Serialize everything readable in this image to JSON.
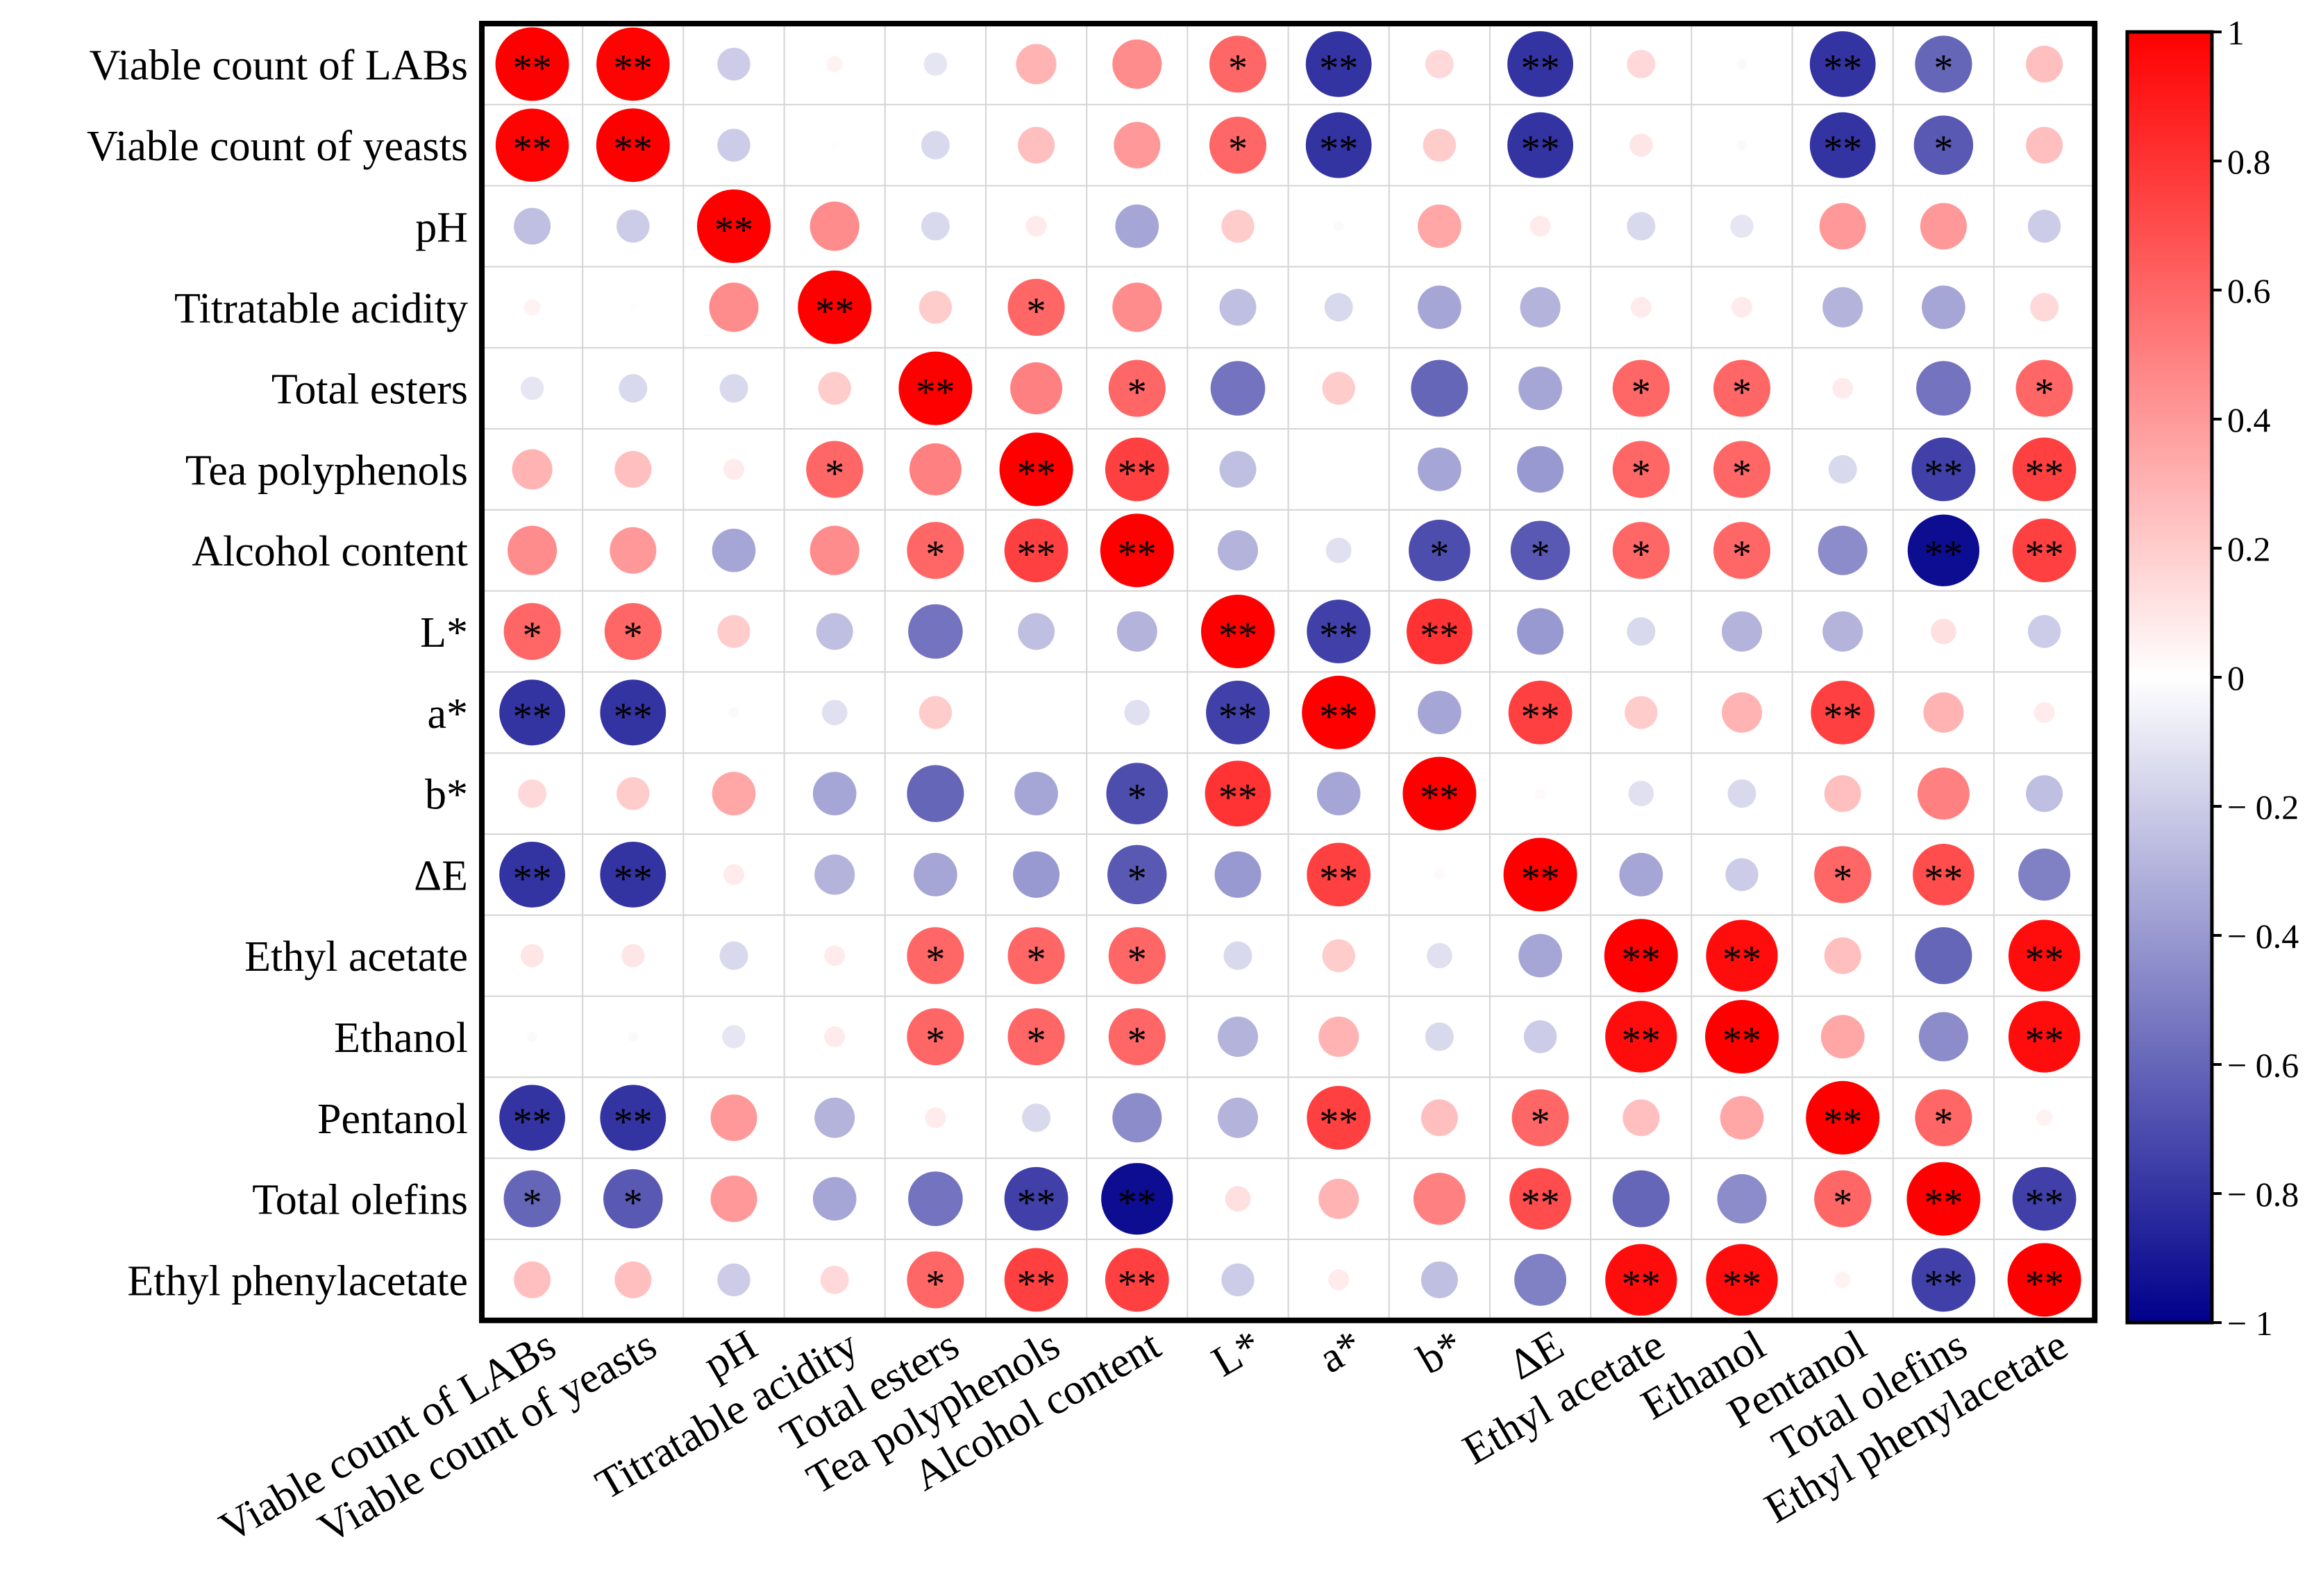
{
  "chart_data": {
    "type": "heatmap",
    "subtype": "correlation-circle-matrix",
    "title": "",
    "variables": [
      "Viable count of LABs",
      "Viable count of yeasts",
      "pH",
      "Titratable acidity",
      "Total esters",
      "Tea polyphenols",
      "Alcohol content",
      "L*",
      "a*",
      "b*",
      "ΔE",
      "Ethyl acetate",
      "Ethanol",
      "Pentanol",
      "Total  olefins",
      "Ethyl phenylacetate"
    ],
    "matrix": [
      [
        1.0,
        0.99,
        -0.2,
        0.05,
        -0.1,
        0.3,
        0.45,
        0.6,
        -0.8,
        0.15,
        -0.8,
        0.15,
        -0.02,
        -0.8,
        -0.6,
        0.25
      ],
      [
        0.99,
        1.0,
        -0.2,
        0.01,
        -0.15,
        0.25,
        0.4,
        0.6,
        -0.8,
        0.2,
        -0.8,
        0.1,
        -0.02,
        -0.8,
        -0.65,
        0.25
      ],
      [
        -0.25,
        -0.2,
        1.0,
        0.45,
        -0.15,
        0.08,
        -0.35,
        0.2,
        -0.02,
        0.35,
        0.08,
        -0.15,
        -0.1,
        0.4,
        0.4,
        -0.2
      ],
      [
        0.05,
        0.01,
        0.45,
        1.0,
        0.2,
        0.6,
        0.45,
        -0.25,
        -0.15,
        -0.35,
        -0.3,
        0.08,
        0.08,
        -0.3,
        -0.35,
        0.15
      ],
      [
        -0.1,
        -0.15,
        -0.15,
        0.2,
        1.0,
        0.5,
        0.6,
        -0.55,
        0.2,
        -0.6,
        -0.35,
        0.6,
        0.6,
        0.08,
        -0.55,
        0.6
      ],
      [
        0.3,
        0.25,
        0.08,
        0.6,
        0.5,
        1.0,
        0.75,
        -0.25,
        0.0,
        -0.35,
        -0.4,
        0.6,
        0.6,
        -0.15,
        -0.75,
        0.75
      ],
      [
        0.45,
        0.4,
        -0.35,
        0.45,
        0.6,
        0.75,
        1.0,
        -0.3,
        -0.12,
        -0.7,
        -0.65,
        0.6,
        0.6,
        -0.45,
        -0.95,
        0.75
      ],
      [
        0.6,
        0.6,
        0.2,
        -0.25,
        -0.55,
        -0.25,
        -0.3,
        1.0,
        -0.75,
        0.8,
        -0.4,
        -0.15,
        -0.3,
        -0.3,
        0.12,
        -0.2
      ],
      [
        -0.8,
        -0.8,
        -0.02,
        -0.12,
        0.2,
        0.0,
        -0.12,
        -0.75,
        1.0,
        -0.35,
        0.75,
        0.2,
        0.3,
        0.75,
        0.3,
        0.08
      ],
      [
        0.15,
        0.2,
        0.35,
        -0.35,
        -0.6,
        -0.35,
        -0.7,
        0.8,
        -0.35,
        1.0,
        0.02,
        -0.12,
        -0.15,
        0.25,
        0.5,
        -0.25
      ],
      [
        -0.8,
        -0.8,
        0.08,
        -0.3,
        -0.35,
        -0.4,
        -0.65,
        -0.4,
        0.75,
        0.02,
        1.0,
        -0.35,
        -0.2,
        0.6,
        0.7,
        -0.5
      ],
      [
        0.1,
        0.1,
        -0.15,
        0.08,
        0.6,
        0.6,
        0.6,
        -0.15,
        0.2,
        -0.12,
        -0.35,
        1.0,
        0.95,
        0.25,
        -0.6,
        0.95
      ],
      [
        -0.02,
        -0.02,
        -0.1,
        0.08,
        0.6,
        0.6,
        0.6,
        -0.3,
        0.3,
        -0.15,
        -0.2,
        0.95,
        1.0,
        0.35,
        -0.45,
        0.95
      ],
      [
        -0.8,
        -0.8,
        0.4,
        -0.3,
        0.08,
        -0.15,
        -0.45,
        -0.3,
        0.75,
        0.25,
        0.6,
        0.25,
        0.35,
        1.0,
        0.6,
        0.05
      ],
      [
        -0.6,
        -0.65,
        0.4,
        -0.35,
        -0.55,
        -0.75,
        -0.95,
        0.12,
        0.3,
        0.5,
        0.7,
        -0.6,
        -0.45,
        0.6,
        1.0,
        -0.75
      ],
      [
        0.25,
        0.25,
        -0.2,
        0.15,
        0.6,
        0.75,
        0.75,
        -0.2,
        0.08,
        -0.25,
        -0.5,
        0.95,
        0.95,
        0.05,
        -0.75,
        1.0
      ]
    ],
    "significance": [
      [
        "**",
        "**",
        "",
        "",
        "",
        "",
        "",
        "*",
        "**",
        "",
        "**",
        "",
        "",
        "**",
        "*",
        ""
      ],
      [
        "**",
        "**",
        "",
        "",
        "",
        "",
        "",
        "*",
        "**",
        "",
        "**",
        "",
        "",
        "**",
        "*",
        ""
      ],
      [
        "",
        "",
        "**",
        "",
        "",
        "",
        "",
        "",
        "",
        "",
        "",
        "",
        "",
        "",
        "",
        ""
      ],
      [
        "",
        "",
        "",
        "**",
        "",
        "*",
        "",
        "",
        "",
        "",
        "",
        "",
        "",
        "",
        "",
        ""
      ],
      [
        "",
        "",
        "",
        "",
        "**",
        "",
        "*",
        "",
        "",
        "",
        "",
        "*",
        "*",
        "",
        "",
        "*"
      ],
      [
        "",
        "",
        "",
        "*",
        "",
        "**",
        "**",
        "",
        "",
        "",
        "",
        "*",
        "*",
        "",
        "**",
        "**"
      ],
      [
        "",
        "",
        "",
        "",
        "*",
        "**",
        "**",
        "",
        "",
        "*",
        "*",
        "*",
        "*",
        "",
        "**",
        "**"
      ],
      [
        "*",
        "*",
        "",
        "",
        "",
        "",
        "",
        "**",
        "**",
        "**",
        "",
        "",
        "",
        "",
        "",
        ""
      ],
      [
        "**",
        "**",
        "",
        "",
        "",
        "",
        "",
        "**",
        "**",
        "",
        "**",
        "",
        "",
        "**",
        "",
        ""
      ],
      [
        "",
        "",
        "",
        "",
        "",
        "",
        "*",
        "**",
        "",
        "**",
        "",
        "",
        "",
        "",
        "",
        ""
      ],
      [
        "**",
        "**",
        "",
        "",
        "",
        "",
        "*",
        "",
        "**",
        "",
        "**",
        "",
        "",
        "*",
        "**",
        ""
      ],
      [
        "",
        "",
        "",
        "",
        "*",
        "*",
        "*",
        "",
        "",
        "",
        "",
        "**",
        "**",
        "",
        "",
        "**"
      ],
      [
        "",
        "",
        "",
        "",
        "*",
        "*",
        "*",
        "",
        "",
        "",
        "",
        "**",
        "**",
        "",
        "",
        "**"
      ],
      [
        "**",
        "**",
        "",
        "",
        "",
        "",
        "",
        "",
        "**",
        "",
        "*",
        "",
        "",
        "**",
        "*",
        ""
      ],
      [
        "*",
        "*",
        "",
        "",
        "",
        "**",
        "**",
        "",
        "",
        "",
        "**",
        "",
        "",
        "*",
        "**",
        "**"
      ],
      [
        "",
        "",
        "",
        "",
        "*",
        "**",
        "**",
        "",
        "",
        "",
        "",
        "**",
        "**",
        "",
        "**",
        "**"
      ]
    ],
    "colorscale": {
      "min": -1,
      "max": 1,
      "colors": [
        "#00008b",
        "#ffffff",
        "#ff0000"
      ],
      "ticks": [
        1,
        0.8,
        0.6,
        0.4,
        0.2,
        0,
        -0.2,
        -0.4,
        -0.6,
        -0.8,
        -1
      ],
      "tick_labels": [
        "1",
        "0.8",
        "0.6",
        "0.4",
        "0.2",
        "0",
        "− 0.2",
        "− 0.4",
        "− 0.6",
        "− 0.8",
        "− 1"
      ]
    },
    "legend": "right",
    "grid": true
  }
}
